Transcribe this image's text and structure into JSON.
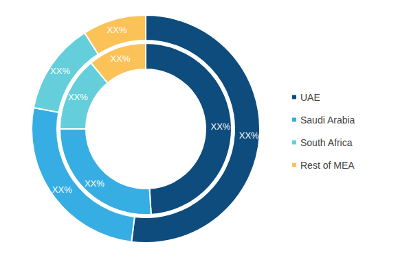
{
  "chart_data": {
    "type": "pie",
    "categories": [
      "UAE",
      "Saudi Arabia",
      "South Africa",
      "Rest of MEA"
    ],
    "colors": [
      "#0e4c7d",
      "#36aee3",
      "#64cfdb",
      "#fbc257"
    ],
    "series": [
      {
        "values": [
          49,
          26,
          14,
          11
        ],
        "value_labels": [
          "XX%",
          "XX%",
          "XX%",
          "XX%"
        ]
      },
      {
        "values": [
          52,
          26,
          13,
          9
        ],
        "value_labels": [
          "XX%",
          "XX%",
          "XX%",
          "XX%"
        ]
      }
    ],
    "data_labels": true,
    "legend": "right"
  }
}
